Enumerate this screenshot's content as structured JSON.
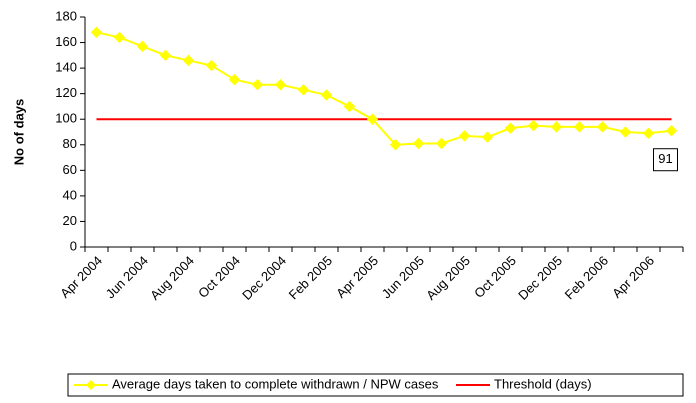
{
  "chart_data": {
    "type": "line",
    "ylabel": "No of days",
    "categories": [
      "Apr 2004",
      null,
      "Jun 2004",
      null,
      "Aug 2004",
      null,
      "Oct 2004",
      null,
      "Dec 2004",
      null,
      "Feb 2005",
      null,
      "Apr 2005",
      null,
      "Jun 2005",
      null,
      "Aug 2005",
      null,
      "Oct 2005",
      null,
      "Dec 2005",
      null,
      "Feb 2006",
      null,
      "Apr 2006",
      null
    ],
    "series": [
      {
        "name": "Average days taken to complete withdrawn / NPW cases",
        "color": "#ffff00",
        "marker": "diamond",
        "values": [
          168,
          164,
          157,
          150,
          146,
          142,
          131,
          127,
          127,
          123,
          119,
          110,
          100,
          80,
          81,
          81,
          87,
          86,
          93,
          95,
          94,
          94,
          94,
          90,
          89,
          91
        ]
      },
      {
        "name": "Threshold (days)",
        "color": "#ff0000",
        "values": [
          100,
          100,
          100,
          100,
          100,
          100,
          100,
          100,
          100,
          100,
          100,
          100,
          100,
          100,
          100,
          100,
          100,
          100,
          100,
          100,
          100,
          100,
          100,
          100,
          100,
          100
        ]
      }
    ],
    "annotations": [
      {
        "text": "91"
      }
    ],
    "ylim": [
      0,
      180
    ],
    "yticks": [
      0,
      20,
      40,
      60,
      80,
      100,
      120,
      140,
      160,
      180
    ],
    "grid": false,
    "legend": "bottom"
  }
}
